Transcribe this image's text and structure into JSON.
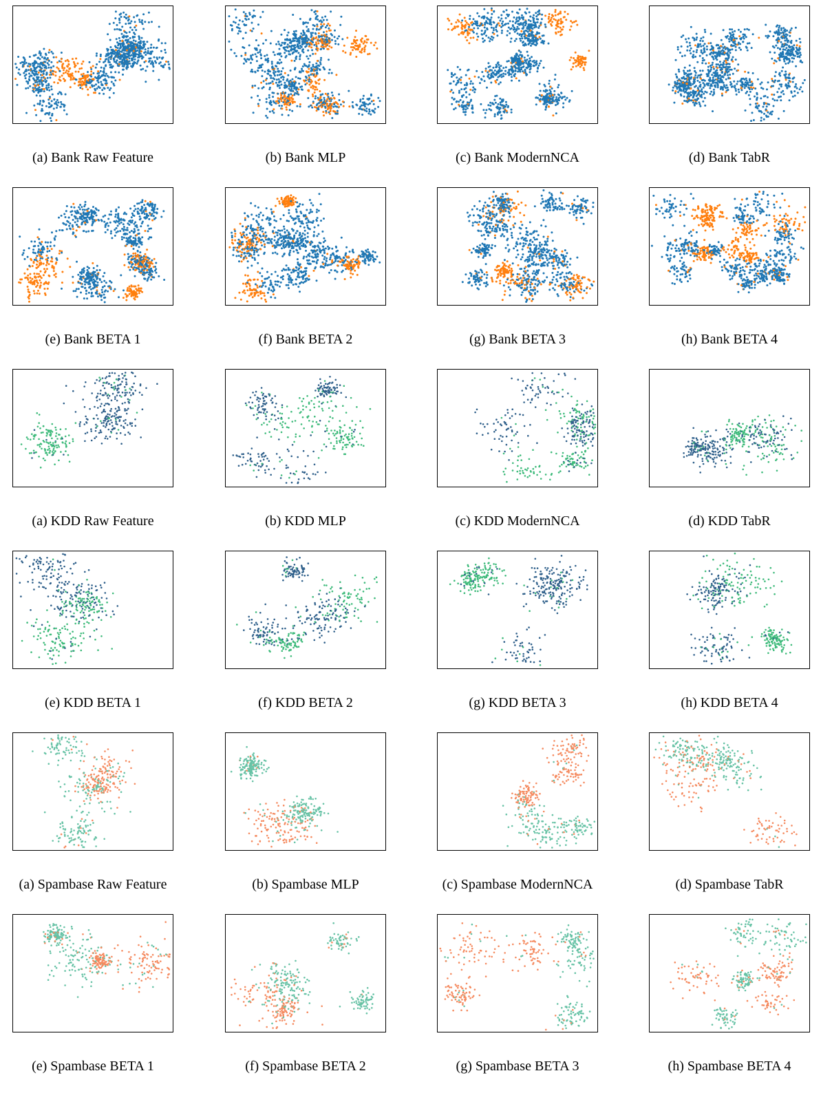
{
  "figure": {
    "groups": [
      {
        "colors": [
          "#1f77b4",
          "#ff7f0e"
        ],
        "panels": [
          {
            "caption": "(a) Bank Raw Feature"
          },
          {
            "caption": "(b) Bank MLP"
          },
          {
            "caption": "(c) Bank ModernNCA"
          },
          {
            "caption": "(d) Bank TabR"
          },
          {
            "caption": "(e) Bank BETA 1"
          },
          {
            "caption": "(f) Bank BETA 2"
          },
          {
            "caption": "(g) Bank BETA 3"
          },
          {
            "caption": "(h) Bank BETA 4"
          }
        ]
      },
      {
        "colors": [
          "#2e5f8a",
          "#3dba7a"
        ],
        "panels": [
          {
            "caption": "(a) KDD Raw Feature"
          },
          {
            "caption": "(b) KDD MLP"
          },
          {
            "caption": "(c) KDD ModernNCA"
          },
          {
            "caption": "(d) KDD TabR"
          },
          {
            "caption": "(e) KDD BETA 1"
          },
          {
            "caption": "(f) KDD BETA 2"
          },
          {
            "caption": "(g) KDD BETA 3"
          },
          {
            "caption": "(h) KDD BETA 4"
          }
        ]
      },
      {
        "colors": [
          "#66c2a5",
          "#f58a5f"
        ],
        "panels": [
          {
            "caption": "(a) Spambase Raw Feature"
          },
          {
            "caption": "(b) Spambase MLP"
          },
          {
            "caption": "(c) Spambase ModernNCA"
          },
          {
            "caption": "(d) Spambase TabR"
          },
          {
            "caption": "(e) Spambase BETA 1"
          },
          {
            "caption": "(f) Spambase BETA 2"
          },
          {
            "caption": "(g) Spambase BETA 3"
          },
          {
            "caption": "(h) Spambase BETA 4"
          }
        ]
      }
    ]
  }
}
